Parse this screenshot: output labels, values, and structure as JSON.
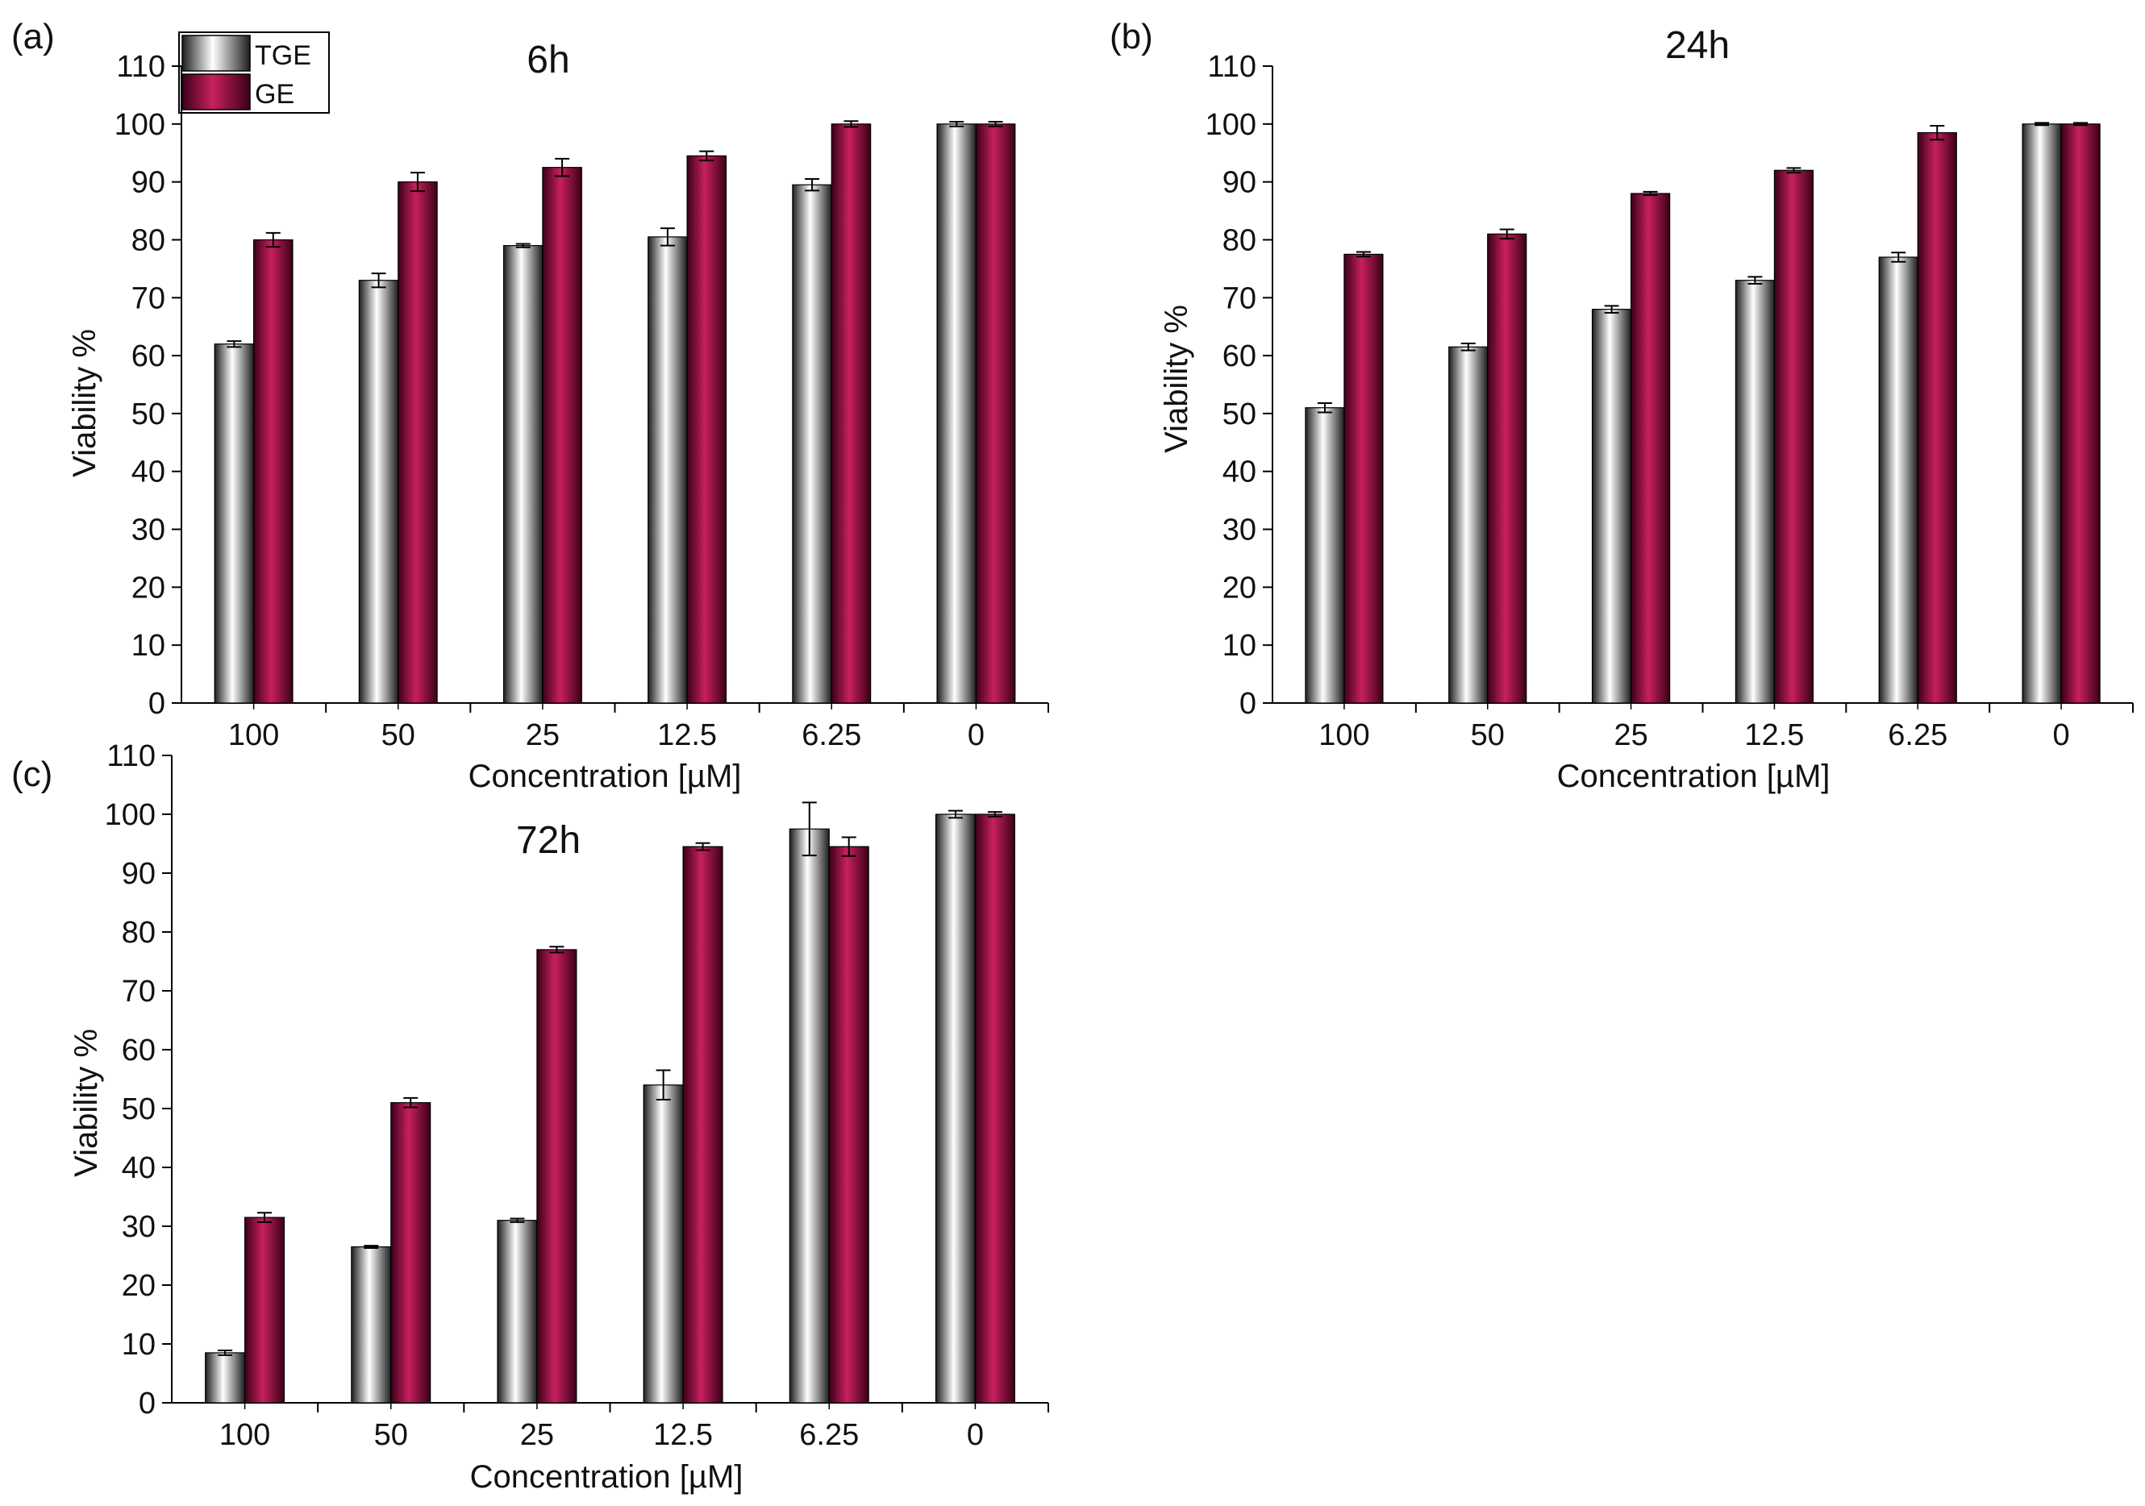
{
  "colors": {
    "tge_light": "#ffffff",
    "tge_mid": "#b8b8b8",
    "tge_dark": "#1e1e1e",
    "ge_light": "#c8205e",
    "ge_mid": "#8a0d48",
    "ge_dark": "#3a0018",
    "axis": "#000000"
  },
  "legend": {
    "items": [
      "TGE",
      "GE"
    ]
  },
  "chart_data": [
    {
      "type": "bar",
      "panel": "(a)",
      "title": "6h",
      "xlabel": "Concentration [µM]",
      "ylabel": "Viability %",
      "ylim": [
        0,
        110
      ],
      "yticks": [
        "0",
        "10",
        "20",
        "30",
        "40",
        "50",
        "60",
        "70",
        "80",
        "90",
        "100",
        "110"
      ],
      "categories": [
        "100",
        "50",
        "25",
        "12.5",
        "6.25",
        "0"
      ],
      "series": [
        {
          "name": "TGE",
          "values": [
            62,
            73,
            79,
            80.5,
            89.5,
            100
          ],
          "errors": [
            0.5,
            1.2,
            0.3,
            1.5,
            1.0,
            0.4
          ]
        },
        {
          "name": "GE",
          "values": [
            80,
            90,
            92.5,
            94.5,
            100,
            100
          ],
          "errors": [
            1.2,
            1.6,
            1.5,
            0.8,
            0.5,
            0.4
          ]
        }
      ],
      "legend_position": "top-left"
    },
    {
      "type": "bar",
      "panel": "(b)",
      "title": "24h",
      "xlabel": "Concentration [µM]",
      "ylabel": "Viability %",
      "ylim": [
        0,
        110
      ],
      "yticks": [
        "0",
        "10",
        "20",
        "30",
        "40",
        "50",
        "60",
        "70",
        "80",
        "90",
        "100",
        "110"
      ],
      "categories": [
        "100",
        "50",
        "25",
        "12.5",
        "6.25",
        "0"
      ],
      "series": [
        {
          "name": "TGE",
          "values": [
            51,
            61.5,
            68,
            73,
            77,
            100
          ],
          "errors": [
            0.8,
            0.6,
            0.6,
            0.6,
            0.8,
            0.2
          ]
        },
        {
          "name": "GE",
          "values": [
            77.5,
            81,
            88,
            92,
            98.5,
            100
          ],
          "errors": [
            0.4,
            0.8,
            0.3,
            0.4,
            1.2,
            0.2
          ]
        }
      ]
    },
    {
      "type": "bar",
      "panel": "(c)",
      "title": "72h",
      "xlabel": "Concentration [µM]",
      "ylabel": "Viability %",
      "ylim": [
        0,
        110
      ],
      "yticks": [
        "0",
        "10",
        "20",
        "30",
        "40",
        "50",
        "60",
        "70",
        "80",
        "90",
        "100",
        "110"
      ],
      "categories": [
        "100",
        "50",
        "25",
        "12.5",
        "6.25",
        "0"
      ],
      "series": [
        {
          "name": "TGE",
          "values": [
            8.5,
            26.5,
            31,
            54,
            97.5,
            100
          ],
          "errors": [
            0.4,
            0.2,
            0.3,
            2.5,
            4.5,
            0.6
          ]
        },
        {
          "name": "GE",
          "values": [
            31.5,
            51,
            77,
            94.5,
            94.5,
            100
          ],
          "errors": [
            0.8,
            0.8,
            0.5,
            0.6,
            1.6,
            0.4
          ]
        }
      ]
    }
  ]
}
